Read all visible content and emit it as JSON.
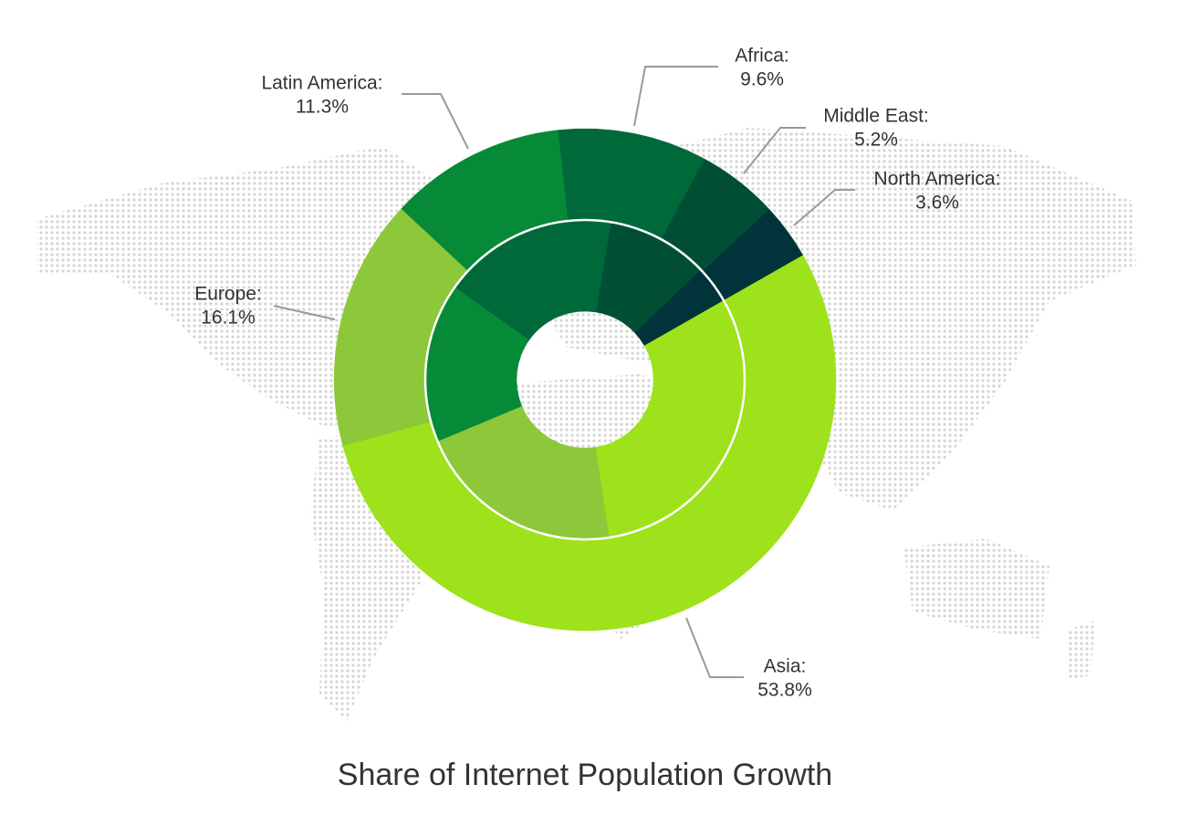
{
  "chart_data": {
    "type": "donut",
    "title": "Share of Internet Population Growth",
    "categories": [
      "Africa:",
      "Middle East:",
      "North America:",
      "Asia:",
      "Europe:",
      "Latin America:"
    ],
    "colors": [
      "#00693a",
      "#004f35",
      "#00343a",
      "#9de21a",
      "#8dc83a",
      "#078a37"
    ],
    "rings": [
      {
        "values": [
          9.6,
          5.2,
          3.6,
          53.8,
          16.1,
          11.3
        ],
        "value_labels": [
          "9.6%",
          "5.2%",
          "3.6%",
          "53.8%",
          "16.1%",
          "11.3%"
        ]
      },
      {
        "values": [
          17.8,
          10.3,
          3.8,
          30.8,
          21.1,
          16.1
        ]
      }
    ]
  }
}
